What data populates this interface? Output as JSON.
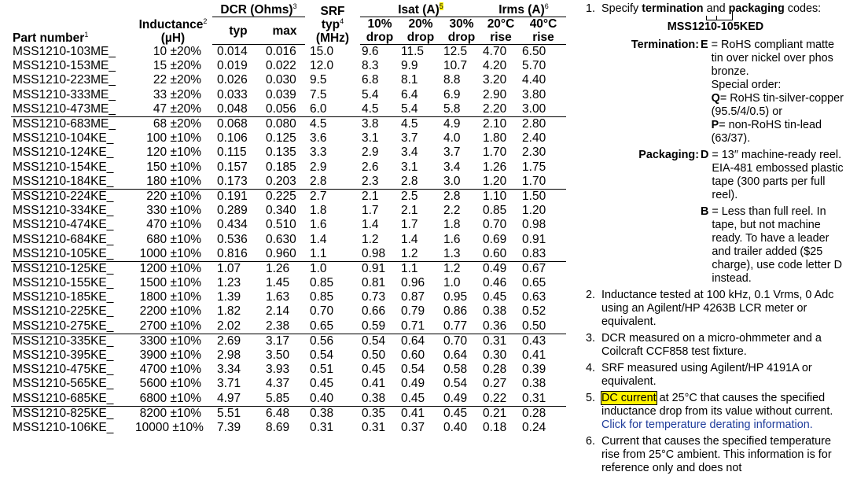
{
  "table": {
    "headers": {
      "part_number": "Part number",
      "part_number_sup": "1",
      "inductance": "Inductance",
      "inductance_sup": "2",
      "inductance_unit": "(µH)",
      "dcr": "DCR (Ohms)",
      "dcr_sup": "3",
      "dcr_typ": "typ",
      "dcr_max": "max",
      "srf": "SRF",
      "srf_typ": "typ",
      "srf_sup": "4",
      "srf_unit": "(MHz)",
      "isat": "Isat (A)",
      "isat_sup": "5",
      "isat_10": "10%",
      "isat_20": "20%",
      "isat_30": "30%",
      "drop": "drop",
      "irms": "Irms (A)",
      "irms_sup": "6",
      "irms_20": "20°C",
      "irms_40": "40°C",
      "rise": "rise"
    },
    "rows": [
      [
        "MSS1210-103ME_",
        "10 ±20%",
        "0.014",
        "0.016",
        "15.0",
        "9.6",
        "11.5",
        "12.5",
        "4.70",
        "6.50"
      ],
      [
        "MSS1210-153ME_",
        "15 ±20%",
        "0.019",
        "0.022",
        "12.0",
        "8.3",
        "9.9",
        "10.7",
        "4.20",
        "5.70"
      ],
      [
        "MSS1210-223ME_",
        "22 ±20%",
        "0.026",
        "0.030",
        "9.5",
        "6.8",
        "8.1",
        "8.8",
        "3.20",
        "4.40"
      ],
      [
        "MSS1210-333ME_",
        "33 ±20%",
        "0.033",
        "0.039",
        "7.5",
        "5.4",
        "6.4",
        "6.9",
        "2.90",
        "3.80"
      ],
      [
        "MSS1210-473ME_",
        "47 ±20%",
        "0.048",
        "0.056",
        "6.0",
        "4.5",
        "5.4",
        "5.8",
        "2.20",
        "3.00"
      ],
      [
        "MSS1210-683ME_",
        "68 ±20%",
        "0.068",
        "0.080",
        "4.5",
        "3.8",
        "4.5",
        "4.9",
        "2.10",
        "2.80"
      ],
      [
        "MSS1210-104KE_",
        "100 ±10%",
        "0.106",
        "0.125",
        "3.6",
        "3.1",
        "3.7",
        "4.0",
        "1.80",
        "2.40"
      ],
      [
        "MSS1210-124KE_",
        "120 ±10%",
        "0.115",
        "0.135",
        "3.3",
        "2.9",
        "3.4",
        "3.7",
        "1.70",
        "2.30"
      ],
      [
        "MSS1210-154KE_",
        "150 ±10%",
        "0.157",
        "0.185",
        "2.9",
        "2.6",
        "3.1",
        "3.4",
        "1.26",
        "1.75"
      ],
      [
        "MSS1210-184KE_",
        "180 ±10%",
        "0.173",
        "0.203",
        "2.8",
        "2.3",
        "2.8",
        "3.0",
        "1.20",
        "1.70"
      ],
      [
        "MSS1210-224KE_",
        "220 ±10%",
        "0.191",
        "0.225",
        "2.7",
        "2.1",
        "2.5",
        "2.8",
        "1.10",
        "1.50"
      ],
      [
        "MSS1210-334KE_",
        "330 ±10%",
        "0.289",
        "0.340",
        "1.8",
        "1.7",
        "2.1",
        "2.2",
        "0.85",
        "1.20"
      ],
      [
        "MSS1210-474KE_",
        "470 ±10%",
        "0.434",
        "0.510",
        "1.6",
        "1.4",
        "1.7",
        "1.8",
        "0.70",
        "0.98"
      ],
      [
        "MSS1210-684KE_",
        "680 ±10%",
        "0.536",
        "0.630",
        "1.4",
        "1.2",
        "1.4",
        "1.6",
        "0.69",
        "0.91"
      ],
      [
        "MSS1210-105KE_",
        "1000 ±10%",
        "0.816",
        "0.960",
        "1.1",
        "0.98",
        "1.2",
        "1.3",
        "0.60",
        "0.83"
      ],
      [
        "MSS1210-125KE_",
        "1200 ±10%",
        "1.07",
        "1.26",
        "1.0",
        "0.91",
        "1.1",
        "1.2",
        "0.49",
        "0.67"
      ],
      [
        "MSS1210-155KE_",
        "1500 ±10%",
        "1.23",
        "1.45",
        "0.85",
        "0.81",
        "0.96",
        "1.0",
        "0.46",
        "0.65"
      ],
      [
        "MSS1210-185KE_",
        "1800 ±10%",
        "1.39",
        "1.63",
        "0.85",
        "0.73",
        "0.87",
        "0.95",
        "0.45",
        "0.63"
      ],
      [
        "MSS1210-225KE_",
        "2200 ±10%",
        "1.82",
        "2.14",
        "0.70",
        "0.66",
        "0.79",
        "0.86",
        "0.38",
        "0.52"
      ],
      [
        "MSS1210-275KE_",
        "2700 ±10%",
        "2.02",
        "2.38",
        "0.65",
        "0.59",
        "0.71",
        "0.77",
        "0.36",
        "0.50"
      ],
      [
        "MSS1210-335KE_",
        "3300 ±10%",
        "2.69",
        "3.17",
        "0.56",
        "0.54",
        "0.64",
        "0.70",
        "0.31",
        "0.43"
      ],
      [
        "MSS1210-395KE_",
        "3900 ±10%",
        "2.98",
        "3.50",
        "0.54",
        "0.50",
        "0.60",
        "0.64",
        "0.30",
        "0.41"
      ],
      [
        "MSS1210-475KE_",
        "4700 ±10%",
        "3.34",
        "3.93",
        "0.51",
        "0.45",
        "0.54",
        "0.58",
        "0.28",
        "0.39"
      ],
      [
        "MSS1210-565KE_",
        "5600 ±10%",
        "3.71",
        "4.37",
        "0.45",
        "0.41",
        "0.49",
        "0.54",
        "0.27",
        "0.38"
      ],
      [
        "MSS1210-685KE_",
        "6800 ±10%",
        "4.97",
        "5.85",
        "0.40",
        "0.38",
        "0.45",
        "0.49",
        "0.22",
        "0.31"
      ],
      [
        "MSS1210-825KE_",
        "8200 ±10%",
        "5.51",
        "6.48",
        "0.38",
        "0.35",
        "0.41",
        "0.45",
        "0.21",
        "0.28"
      ],
      [
        "MSS1210-106KE_",
        "10000 ±10%",
        "7.39",
        "8.69",
        "0.31",
        "0.31",
        "0.37",
        "0.40",
        "0.18",
        "0.24"
      ]
    ]
  },
  "notes": {
    "n1": {
      "num": "1.",
      "pre": "Specify",
      "b1": "termination",
      "mid": "and",
      "b2": "packaging",
      "post": "codes:",
      "code": "MSS1210-105KED",
      "termination_label": "Termination:",
      "e_key": "E",
      "e_text": "= RoHS compliant matte tin over nickel over phos bronze.",
      "special_order": "Special order:",
      "q_key": "Q",
      "q_text": "= RoHS tin-silver-copper (95.5/4/0.5) or",
      "p_key": "P",
      "p_text": "= non-RoHS tin-lead (63/37).",
      "packaging_label": "Packaging:",
      "d_key": "D",
      "d_text": "= 13″ machine-ready reel. EIA-481 embossed plastic tape (300 parts per full reel).",
      "b_key": "B",
      "b_text": "= Less than full reel. In tape, but not machine ready. To have a leader and trailer added ($25 charge), use code letter D instead."
    },
    "n2": {
      "num": "2.",
      "text": "Inductance tested at 100 kHz, 0.1 Vrms, 0 Adc using an Agilent/HP 4263B LCR meter or equivalent."
    },
    "n3": {
      "num": "3.",
      "text": "DCR measured on a micro-ohmmeter and a Coilcraft CCF858 test fixture."
    },
    "n4": {
      "num": "4.",
      "text": "SRF measured using Agilent/HP 4191A or equivalent."
    },
    "n5": {
      "num": "5.",
      "hl": "DC current",
      "text": " at 25°C that causes the specified inductance drop from its value without current.",
      "link": "Click for temperature derating information."
    },
    "n6": {
      "num": "6.",
      "text": "Current that causes the specified temperature rise from 25°C ambient. This information is for reference only and does not"
    }
  }
}
